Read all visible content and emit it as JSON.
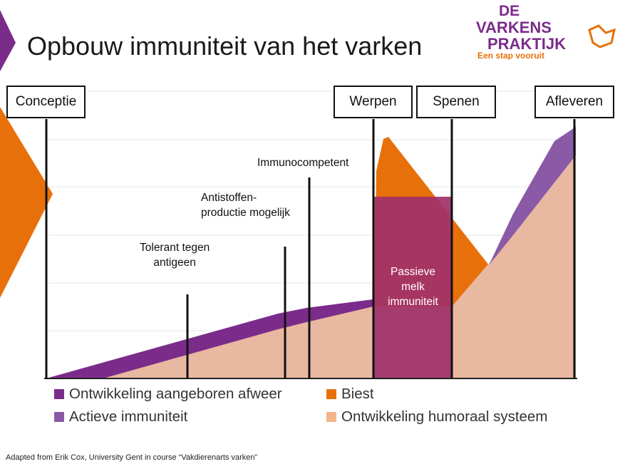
{
  "slide": {
    "title": "Opbouw immuniteit van het varken",
    "logo": {
      "line1": "DE",
      "line2": "VARKENS",
      "line3": "PRAKTIJK",
      "tagline": "Een stap vooruit"
    },
    "source": "Adapted from Erik Cox, University Gent in course “Vakdierenarts varken”"
  },
  "milestones": [
    "Conceptie",
    "Werpen",
    "Spenen",
    "Afleveren"
  ],
  "annotations": {
    "tolerant": "Tolerant tegen\nantigeen",
    "antistoffen": "Antistoffen-\nproductie mogelijk",
    "immunocompetent": "Immunocompetent",
    "passieve": "Passieve\nmelk\nimmuniteit"
  },
  "legend": [
    {
      "label": "Ontwikkeling aangeboren afweer",
      "color": "#7b2c8a"
    },
    {
      "label": "Biest",
      "color": "#e8700a"
    },
    {
      "label": "Actieve immuniteit",
      "color": "#8a5aa6"
    },
    {
      "label": "Ontwikkeling humoraal systeem",
      "color": "#f4b58a"
    }
  ],
  "colors": {
    "aangeboren": "#7b2c8a",
    "biest": "#e8700a",
    "actieve": "#8a5aa6",
    "humoraal": "#e9b8a0",
    "passieve": "#a0306a",
    "accent_orange": "#e8700a",
    "accent_purple": "#7b2c8a"
  }
}
